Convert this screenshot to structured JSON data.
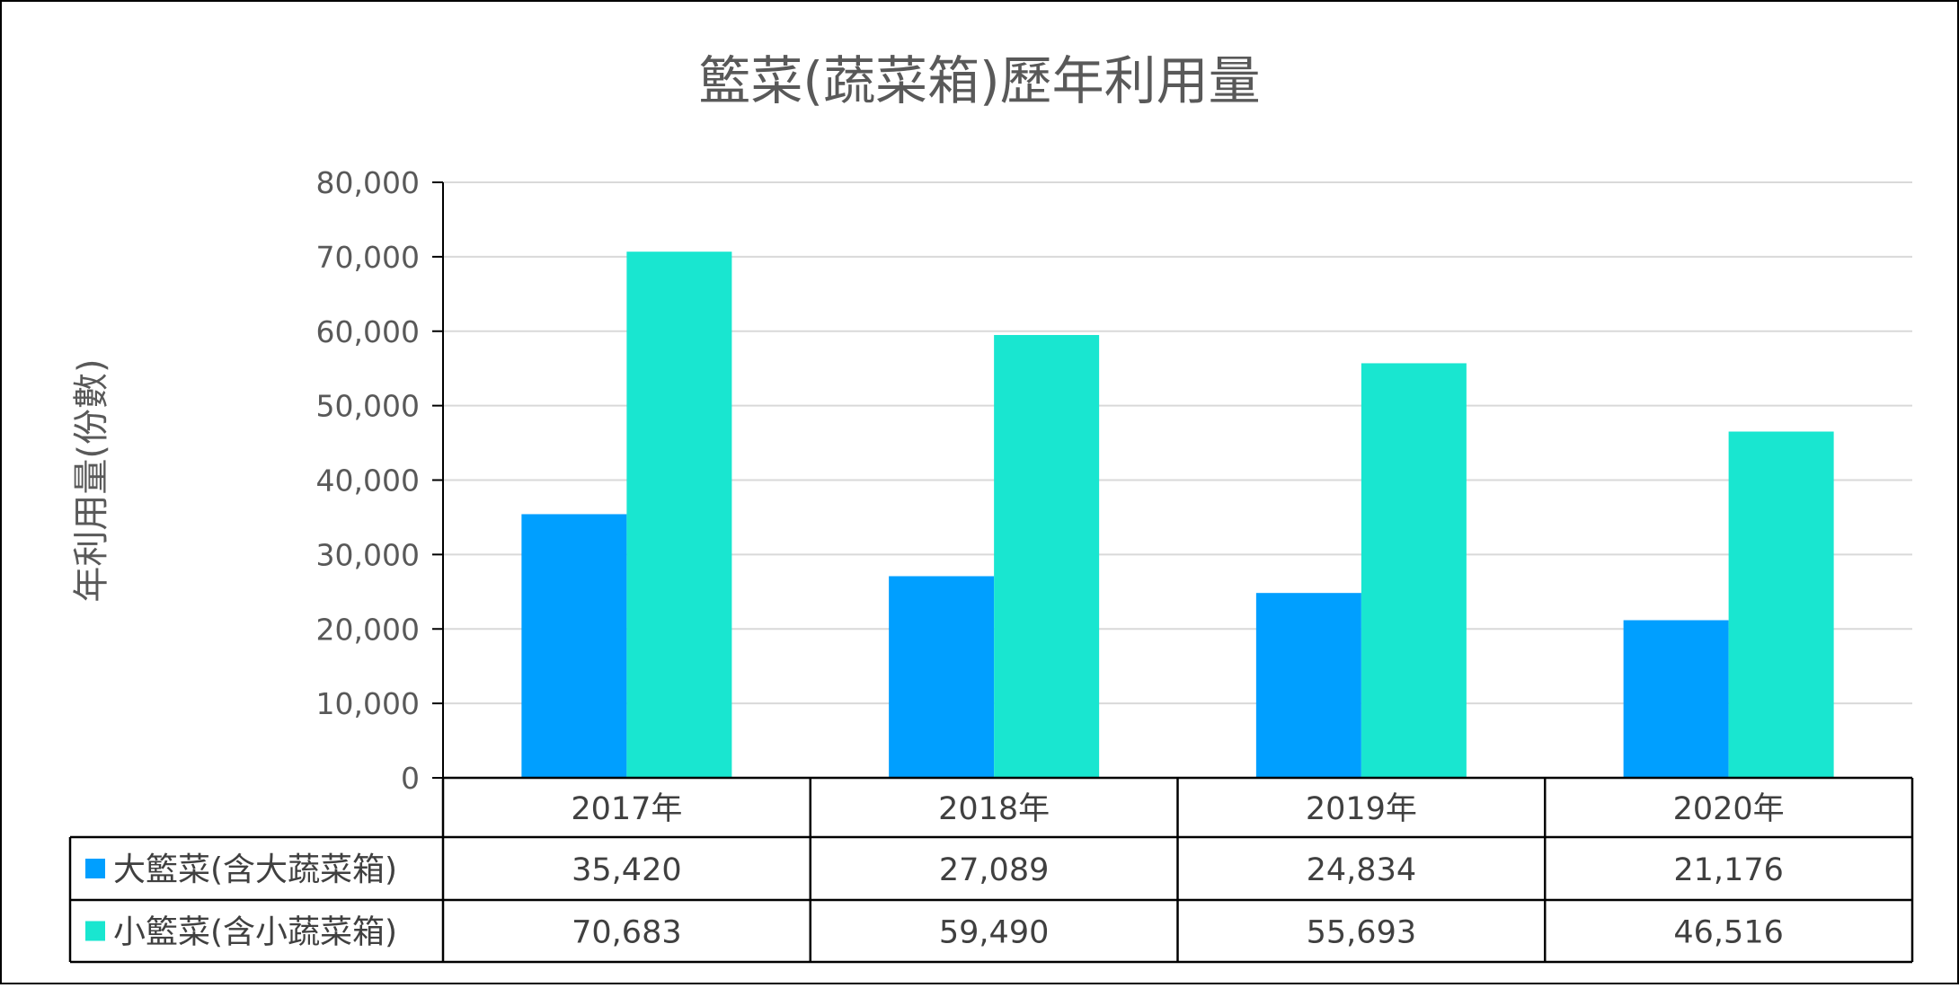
{
  "chart_data": {
    "type": "bar",
    "title": "籃菜(蔬菜箱)歷年利用量",
    "xlabel": "",
    "ylabel": "年利用量(份數)",
    "categories": [
      "2017年",
      "2018年",
      "2019年",
      "2020年"
    ],
    "series": [
      {
        "name": "大籃菜(含大蔬菜箱)",
        "color": "#009FFF",
        "values": [
          35420,
          27089,
          24834,
          21176
        ],
        "labels": [
          "35,420",
          "27,089",
          "24,834",
          "21,176"
        ]
      },
      {
        "name": "小籃菜(含小蔬菜箱)",
        "color": "#19E6D0",
        "values": [
          70683,
          59490,
          55693,
          46516
        ],
        "labels": [
          "70,683",
          "59,490",
          "55,693",
          "46,516"
        ]
      }
    ],
    "ylim": [
      0,
      80000
    ],
    "yticks": [
      0,
      10000,
      20000,
      30000,
      40000,
      50000,
      60000,
      70000,
      80000
    ],
    "ytick_labels": [
      "0",
      "10,000",
      "20,000",
      "30,000",
      "40,000",
      "50,000",
      "60,000",
      "70,000",
      "80,000"
    ],
    "grid": true,
    "legend": "data-table"
  }
}
